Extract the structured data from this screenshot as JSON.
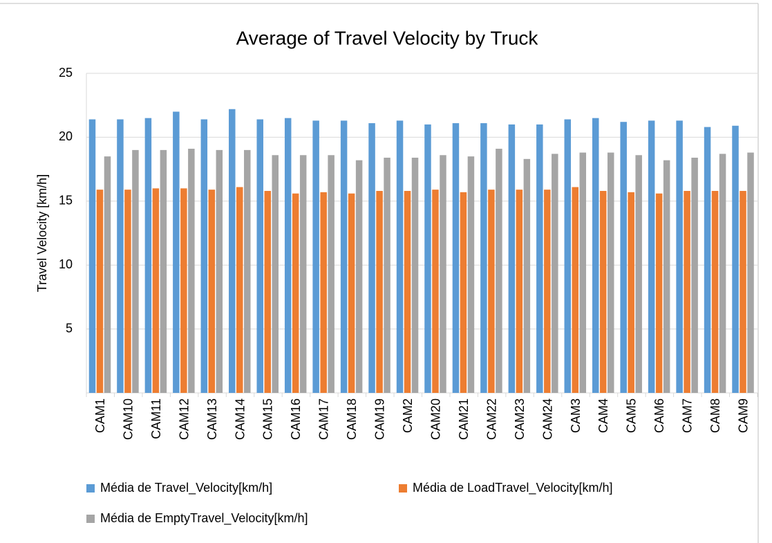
{
  "chart_data": {
    "type": "bar",
    "title": "Average of Travel Velocity by Truck",
    "ylabel": "Travel Velocity [km/h]",
    "categories": [
      "CAM1",
      "CAM10",
      "CAM11",
      "CAM12",
      "CAM13",
      "CAM14",
      "CAM15",
      "CAM16",
      "CAM17",
      "CAM18",
      "CAM19",
      "CAM2",
      "CAM20",
      "CAM21",
      "CAM22",
      "CAM23",
      "CAM24",
      "CAM3",
      "CAM4",
      "CAM5",
      "CAM6",
      "CAM7",
      "CAM8",
      "CAM9"
    ],
    "series": [
      {
        "name": "Média de Travel_Velocity[km/h]",
        "color": "#5b9bd5",
        "values": [
          21.4,
          21.4,
          21.5,
          22.0,
          21.4,
          22.2,
          21.4,
          21.5,
          21.3,
          21.3,
          21.1,
          21.3,
          21.0,
          21.1,
          21.1,
          21.0,
          21.0,
          21.4,
          21.5,
          21.2,
          21.3,
          21.3,
          20.8,
          20.9
        ]
      },
      {
        "name": "Média de LoadTravel_Velocity[km/h]",
        "color": "#ed7d31",
        "values": [
          15.9,
          15.9,
          16.0,
          16.0,
          15.9,
          16.1,
          15.8,
          15.6,
          15.7,
          15.6,
          15.8,
          15.8,
          15.9,
          15.7,
          15.9,
          15.9,
          15.9,
          16.1,
          15.8,
          15.7,
          15.6,
          15.8,
          15.8,
          15.8
        ]
      },
      {
        "name": "Média de EmptyTravel_Velocity[km/h]",
        "color": "#a5a5a5",
        "values": [
          18.5,
          19.0,
          19.0,
          19.1,
          19.0,
          19.0,
          18.6,
          18.6,
          18.6,
          18.2,
          18.4,
          18.4,
          18.6,
          18.5,
          19.1,
          18.3,
          18.7,
          18.8,
          18.8,
          18.6,
          18.2,
          18.4,
          18.7,
          18.8
        ]
      }
    ],
    "ylim": [
      0,
      25
    ],
    "yticks": [
      5,
      10,
      15,
      20,
      25
    ],
    "grid": true
  }
}
